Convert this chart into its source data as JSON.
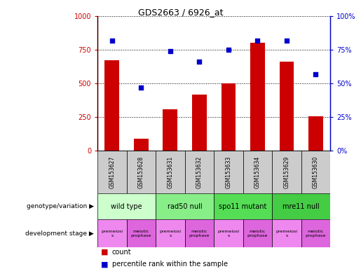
{
  "title": "GDS2663 / 6926_at",
  "samples": [
    "GSM153627",
    "GSM153628",
    "GSM153631",
    "GSM153632",
    "GSM153633",
    "GSM153634",
    "GSM153629",
    "GSM153630"
  ],
  "counts": [
    670,
    90,
    310,
    415,
    500,
    800,
    660,
    255
  ],
  "percentiles": [
    82,
    47,
    74,
    66,
    75,
    82,
    82,
    57
  ],
  "bar_color": "#cc0000",
  "dot_color": "#0000cc",
  "ylim_left": [
    0,
    1000
  ],
  "ylim_right": [
    0,
    100
  ],
  "yticks_left": [
    0,
    250,
    500,
    750,
    1000
  ],
  "yticks_right": [
    0,
    25,
    50,
    75,
    100
  ],
  "ytick_labels_left": [
    "0",
    "250",
    "500",
    "750",
    "1000"
  ],
  "ytick_labels_right": [
    "0%",
    "25%",
    "50%",
    "75%",
    "100%"
  ],
  "sample_box_color": "#cccccc",
  "genotype_groups": [
    {
      "label": "wild type",
      "start": 0,
      "end": 2,
      "color": "#ccffcc"
    },
    {
      "label": "rad50 null",
      "start": 2,
      "end": 4,
      "color": "#88ee88"
    },
    {
      "label": "spo11 mutant",
      "start": 4,
      "end": 6,
      "color": "#55dd55"
    },
    {
      "label": "mre11 null",
      "start": 6,
      "end": 8,
      "color": "#44cc44"
    }
  ],
  "dev_stages": [
    {
      "label": "premeiosi\ns",
      "start": 0,
      "end": 1,
      "color": "#ee88ee"
    },
    {
      "label": "meiotic\nprophase",
      "start": 1,
      "end": 2,
      "color": "#dd66dd"
    },
    {
      "label": "premeiosi\ns",
      "start": 2,
      "end": 3,
      "color": "#ee88ee"
    },
    {
      "label": "meiotic\nprophase",
      "start": 3,
      "end": 4,
      "color": "#dd66dd"
    },
    {
      "label": "premeiosi\ns",
      "start": 4,
      "end": 5,
      "color": "#ee88ee"
    },
    {
      "label": "meiotic\nprophase",
      "start": 5,
      "end": 6,
      "color": "#dd66dd"
    },
    {
      "label": "premeiosi\ns",
      "start": 6,
      "end": 7,
      "color": "#ee88ee"
    },
    {
      "label": "meiotic\nprophase",
      "start": 7,
      "end": 8,
      "color": "#dd66dd"
    }
  ],
  "legend_count_label": "count",
  "legend_pct_label": "percentile rank within the sample",
  "genotype_label": "genotype/variation",
  "dev_stage_label": "development stage",
  "left_axis_color": "#cc0000",
  "right_axis_color": "#0000cc",
  "bar_width": 0.5,
  "fig_width": 5.15,
  "fig_height": 3.84,
  "dpi": 100
}
